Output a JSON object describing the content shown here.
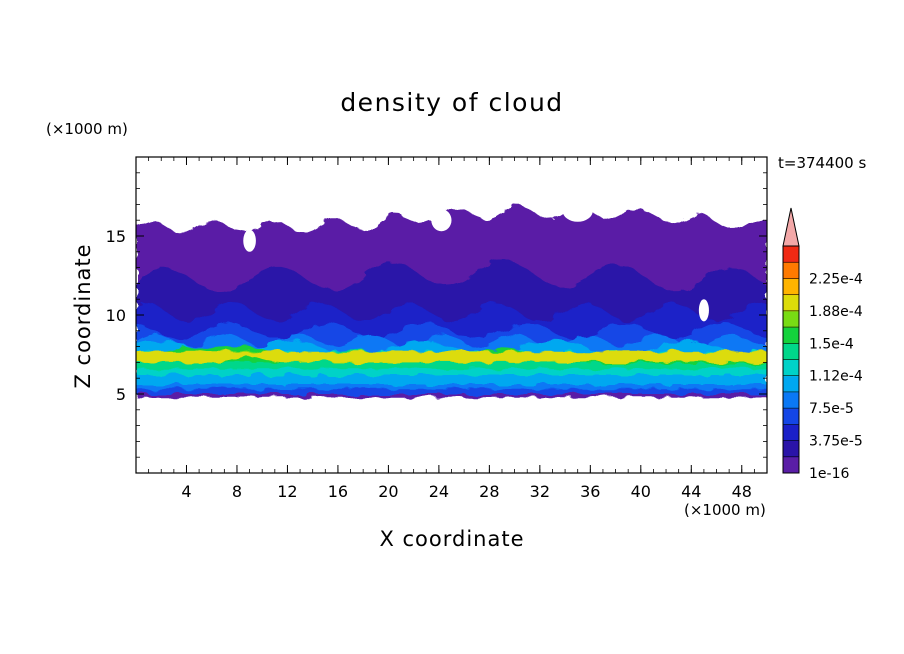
{
  "chart_data": {
    "type": "heatmap",
    "title": "density of cloud",
    "xlabel": "X coordinate",
    "ylabel": "Z coordinate",
    "x_unit": "(×1000 m)",
    "y_unit": "(×1000 m)",
    "time_label": "t=374400 s",
    "xlim": [
      0,
      50
    ],
    "ylim": [
      0,
      20
    ],
    "x_ticks": [
      "4",
      "8",
      "12",
      "16",
      "20",
      "24",
      "28",
      "32",
      "36",
      "40",
      "44",
      "48"
    ],
    "y_ticks": [
      "5",
      "10",
      "15"
    ],
    "grid": false,
    "colorbar": {
      "labels": [
        "1e-16",
        "3.75e-5",
        "7.5e-5",
        "1.12e-4",
        "1.5e-4",
        "1.88e-4",
        "2.25e-4"
      ],
      "levels": [
        1e-16,
        1.875e-05,
        3.75e-05,
        5.625e-05,
        7.5e-05,
        9.375e-05,
        0.0001125,
        0.00013125,
        0.00015,
        0.00016875,
        0.0001875,
        0.00020625,
        0.000225,
        0.00024375
      ],
      "colors": [
        "#5a1ea6",
        "#2a14a8",
        "#1a20c8",
        "#1446e6",
        "#0a78f5",
        "#00a8f0",
        "#00d2c8",
        "#00d78a",
        "#14d23c",
        "#78dc14",
        "#dcdc0a",
        "#ffb400",
        "#ff7a00",
        "#f02a14"
      ],
      "extend_color": "#f3a8a8"
    },
    "field_description": {
      "cloud_base_km": 5,
      "cloud_top_km": [
        15.5,
        17
      ],
      "dense_layer_km": [
        6.5,
        8.5
      ],
      "max_value_approx": 0.00017
    }
  }
}
